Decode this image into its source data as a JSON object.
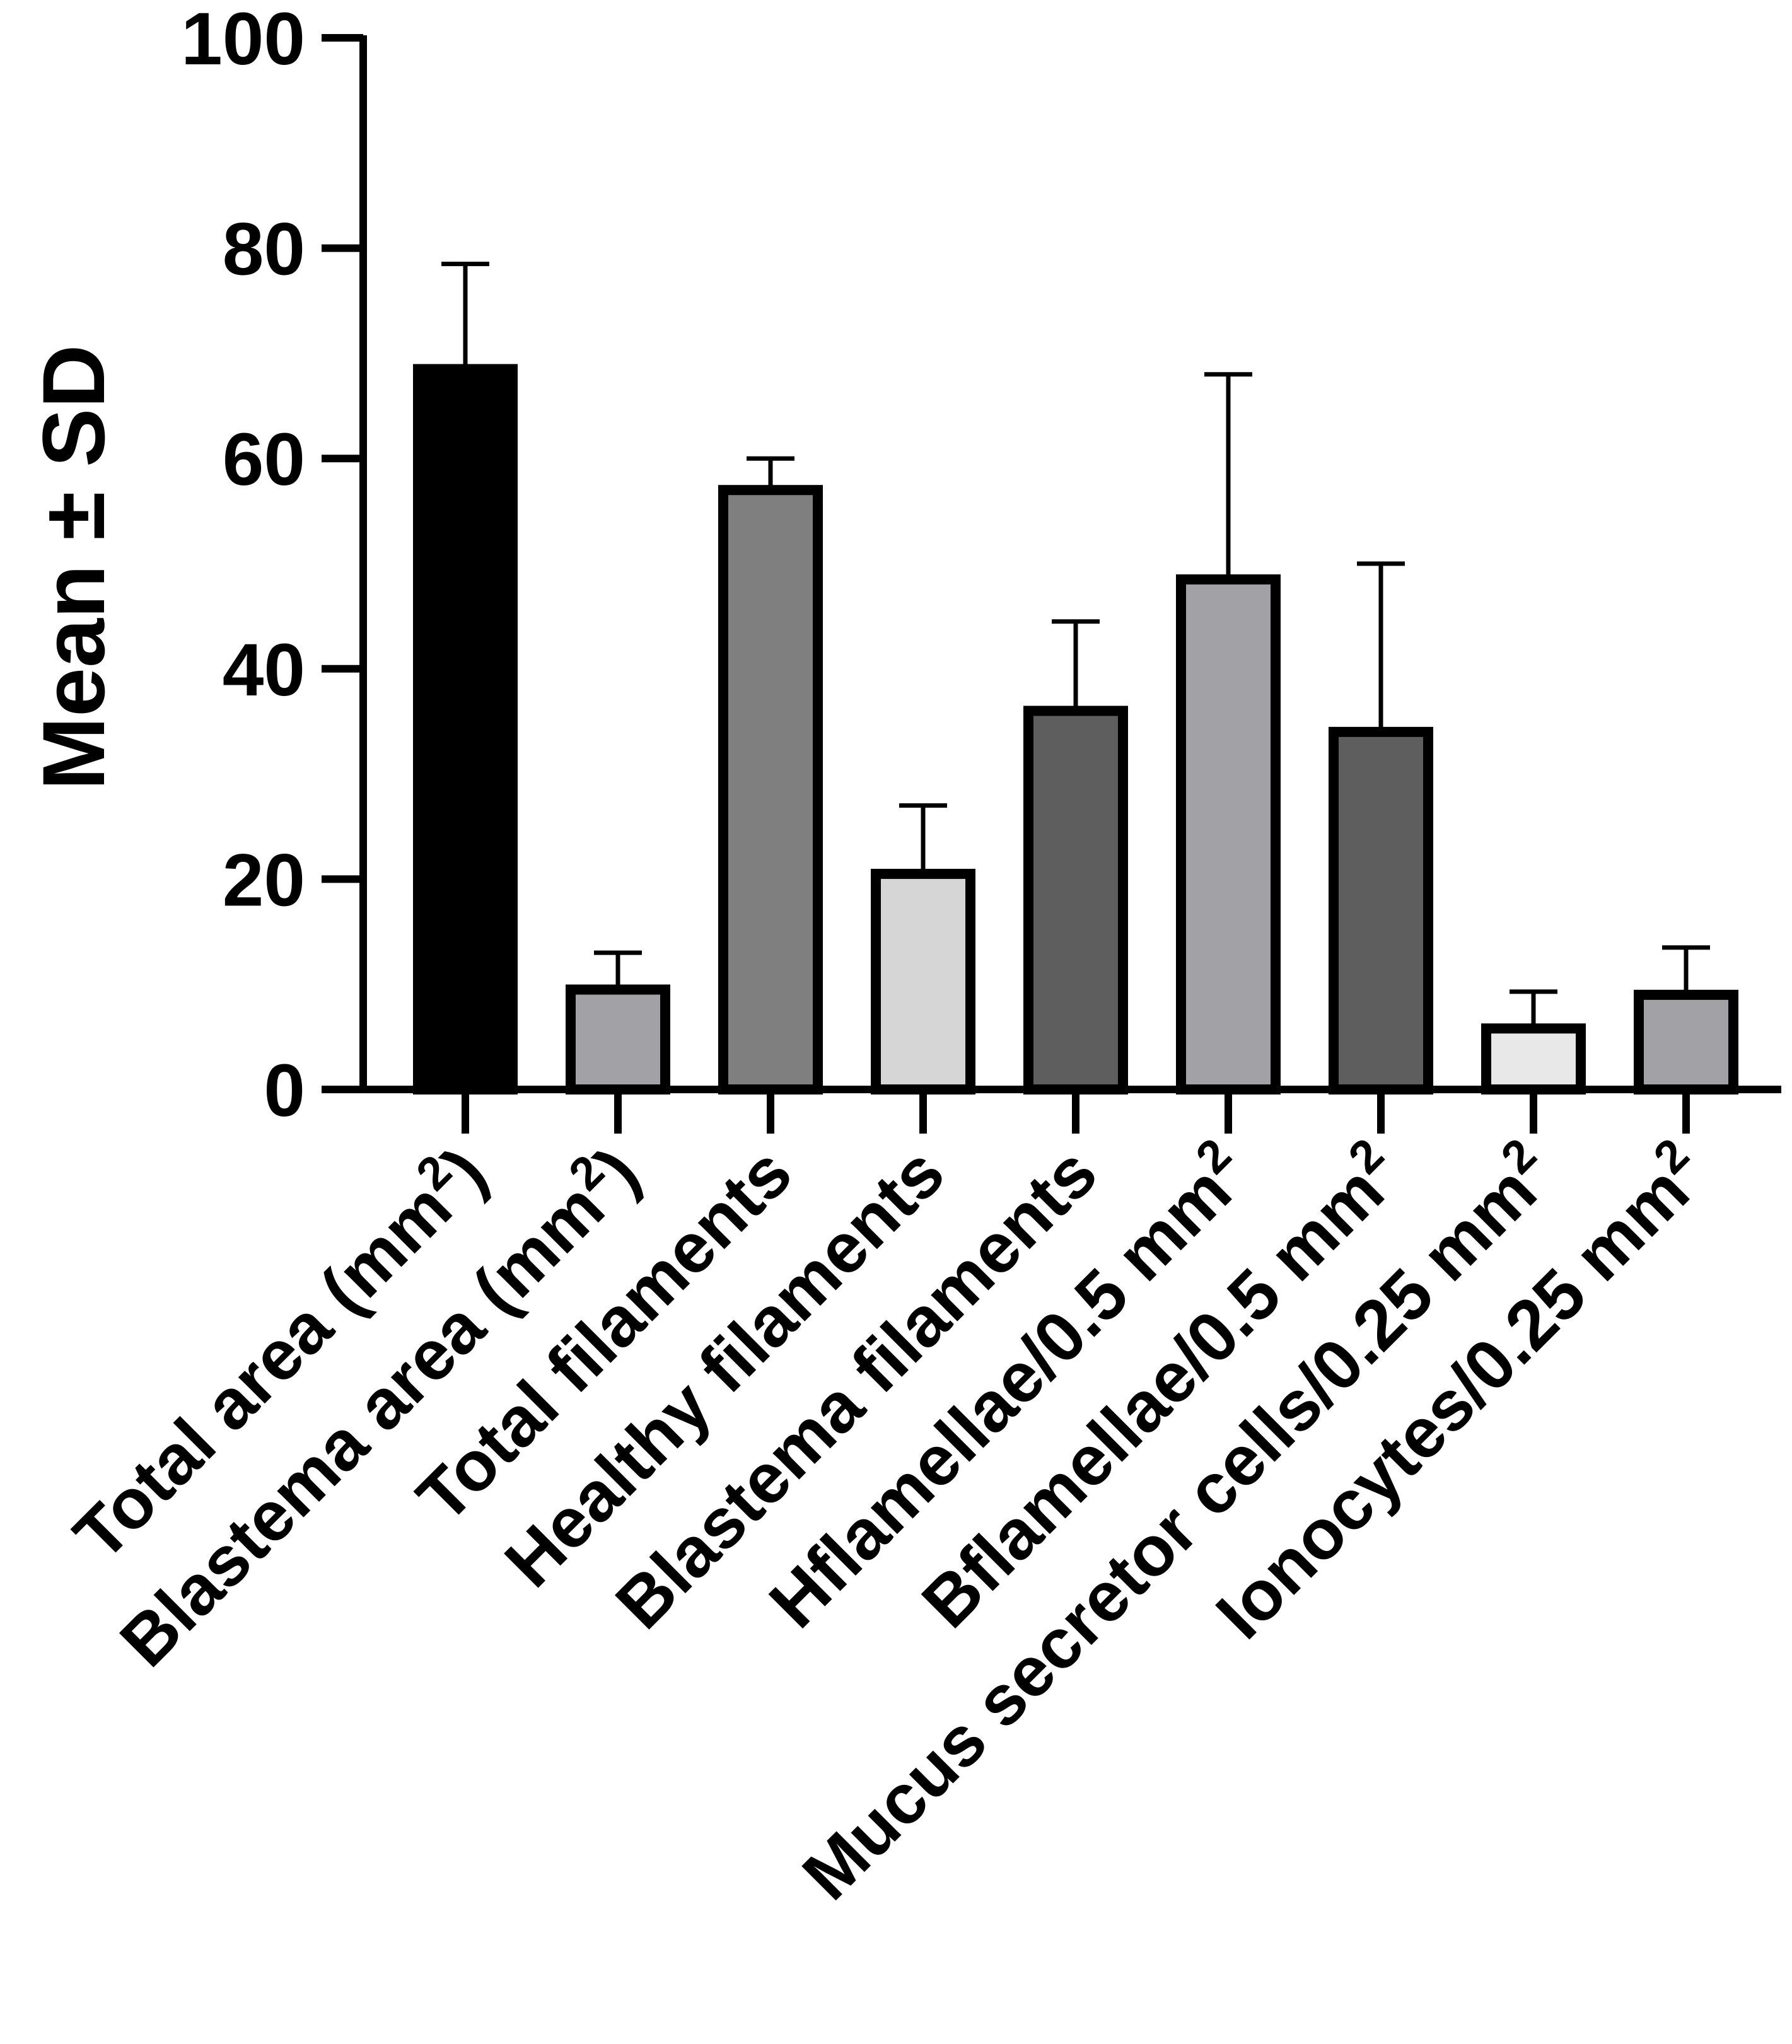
{
  "chart_data": {
    "type": "bar",
    "title": "",
    "xlabel": "",
    "ylabel": "Mean ± SD",
    "ylim": [
      0,
      100
    ],
    "yticks": [
      "0",
      "20",
      "40",
      "60",
      "80",
      "100"
    ],
    "grid": false,
    "legend": "none",
    "categories": [
      {
        "main": "Total area (mm",
        "sup": "2",
        "post": ")"
      },
      {
        "main": "Blastema area (mm",
        "sup": "2",
        "post": ")"
      },
      {
        "main": "Total filaments",
        "sup": "",
        "post": ""
      },
      {
        "main": "Healthy filaments",
        "sup": "",
        "post": ""
      },
      {
        "main": "Blastema filaments",
        "sup": "",
        "post": ""
      },
      {
        "main": "Hflamellae/0.5 mm",
        "sup": "2",
        "post": ""
      },
      {
        "main": "Bflamellae/0.5 mm",
        "sup": "2",
        "post": ""
      },
      {
        "main": "Mucus secretor cells/0.25 mm",
        "sup": "2",
        "post": ""
      },
      {
        "main": "Ionocytes/0.25 mm",
        "sup": "2",
        "post": ""
      }
    ],
    "values": [
      68.5,
      9.5,
      57,
      20.5,
      36,
      48.5,
      34,
      5.8,
      9
    ],
    "errors": [
      10,
      3.5,
      3,
      6.5,
      8.5,
      19.5,
      16,
      3.5,
      4.5
    ],
    "colors": [
      "#000000",
      "#a2a2a6",
      "#7f7f7f",
      "#d6d6d6",
      "#5e5e5e",
      "#a2a2a6",
      "#5e5e5e",
      "#e8e8e8",
      "#a2a2a6"
    ]
  }
}
